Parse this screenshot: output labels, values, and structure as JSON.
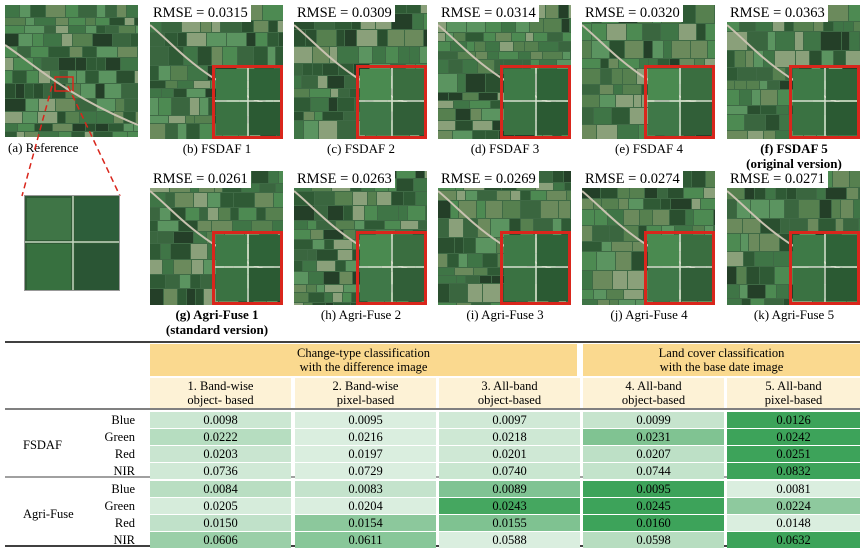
{
  "figure": {
    "reference_caption": "(a) Reference",
    "fsdaf_panels": [
      {
        "caption": "(b) FSDAF 1",
        "rmse": "RMSE = 0.0315",
        "bold": false
      },
      {
        "caption": "(c) FSDAF 2",
        "rmse": "RMSE = 0.0309",
        "bold": false
      },
      {
        "caption": "(d) FSDAF 3",
        "rmse": "RMSE = 0.0314",
        "bold": false
      },
      {
        "caption": "(e) FSDAF 4",
        "rmse": "RMSE = 0.0320",
        "bold": false
      },
      {
        "caption": "(f) FSDAF 5",
        "caption2": "(original version)",
        "rmse": "RMSE = 0.0363",
        "bold": true
      }
    ],
    "agri_panels": [
      {
        "caption": "(g) Agri-Fuse 1",
        "caption2": "(standard version)",
        "rmse": "RMSE = 0.0261",
        "bold": true
      },
      {
        "caption": "(h) Agri-Fuse 2",
        "rmse": "RMSE = 0.0263",
        "bold": false
      },
      {
        "caption": "(i) Agri-Fuse 3",
        "rmse": "RMSE = 0.0269",
        "bold": false
      },
      {
        "caption": "(j) Agri-Fuse 4",
        "rmse": "RMSE = 0.0274",
        "bold": false
      },
      {
        "caption": "(k) Agri-Fuse 5",
        "rmse": "RMSE = 0.0271",
        "bold": false
      }
    ]
  },
  "table": {
    "group_headers": [
      {
        "line1": "Change-type classification",
        "line2": "with the difference image"
      },
      {
        "line1": "Land cover classification",
        "line2": "with the base date image"
      }
    ],
    "column_headers": [
      {
        "line1": "1. Band-wise",
        "line2": "object- based"
      },
      {
        "line1": "2. Band-wise",
        "line2": "pixel-based"
      },
      {
        "line1": "3. All-band",
        "line2": "object-based"
      },
      {
        "line1": "4. All-band",
        "line2": "object-based"
      },
      {
        "line1": "5. All-band",
        "line2": "pixel-based"
      }
    ],
    "groups": [
      {
        "name": "FSDAF",
        "rows": [
          {
            "band": "Blue",
            "values": [
              "0.0098",
              "0.0095",
              "0.0097",
              "0.0099",
              "0.0126"
            ]
          },
          {
            "band": "Green",
            "values": [
              "0.0222",
              "0.0216",
              "0.0218",
              "0.0231",
              "0.0242"
            ]
          },
          {
            "band": "Red",
            "values": [
              "0.0203",
              "0.0197",
              "0.0201",
              "0.0207",
              "0.0251"
            ]
          },
          {
            "band": "NIR",
            "values": [
              "0.0736",
              "0.0729",
              "0.0740",
              "0.0744",
              "0.0832"
            ]
          }
        ]
      },
      {
        "name": "Agri-Fuse",
        "rows": [
          {
            "band": "Blue",
            "values": [
              "0.0084",
              "0.0083",
              "0.0089",
              "0.0095",
              "0.0081"
            ]
          },
          {
            "band": "Green",
            "values": [
              "0.0205",
              "0.0204",
              "0.0243",
              "0.0245",
              "0.0224"
            ]
          },
          {
            "band": "Red",
            "values": [
              "0.0150",
              "0.0154",
              "0.0155",
              "0.0160",
              "0.0148"
            ]
          },
          {
            "band": "NIR",
            "values": [
              "0.0606",
              "0.0611",
              "0.0588",
              "0.0598",
              "0.0632"
            ]
          }
        ]
      }
    ],
    "colors": {
      "group_header_bg": "#fad98f",
      "column_header_bg": "#fdf2d6",
      "heat_low": "#f6fbf6",
      "heat_high": "#3da35a"
    }
  }
}
